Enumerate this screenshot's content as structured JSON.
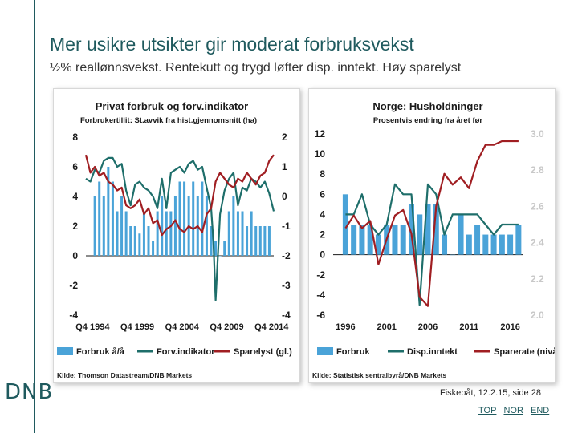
{
  "slide": {
    "title": "Mer usikre utsikter gir moderat forbruksvekst",
    "subtitle": "½% reallønnsvekst. Rentekutt og trygd løfter disp. inntekt. Høy sparelyst",
    "logo": "DNB",
    "footer": "Fiskebåt, 12.2.15, side 28",
    "nav": [
      "TOP",
      "NOR",
      "END"
    ]
  },
  "colors": {
    "accent": "#1f5a5e",
    "bars": "#4aa3d8",
    "teal_line": "#1e6e6a",
    "red_line": "#a01e22",
    "text": "#222222"
  },
  "chart_data": [
    {
      "type": "bar",
      "title": "Privat forbruk og forv.indikator",
      "subtitle": "Forbrukertillit: St.avvik fra hist.gjennomsnitt (ha)",
      "source": "Kilde: Thomson Datastream/DNB Markets",
      "xtick_labels": [
        "Q4 1994",
        "Q4 1999",
        "Q4 2004",
        "Q4 2009",
        "Q4 2014"
      ],
      "y_left": {
        "lim": [
          -4,
          8
        ],
        "ticks": [
          "8",
          "6",
          "4",
          "2",
          "0",
          "-2",
          "-4"
        ]
      },
      "y_right": {
        "lim": [
          -4,
          2
        ],
        "ticks": [
          "2",
          "1",
          "0",
          "-1",
          "-2",
          "-3",
          "-4"
        ]
      },
      "grid": false,
      "legend_position": "bottom",
      "series": [
        {
          "name": "Forbruk å/å",
          "kind": "bar",
          "axis": "left",
          "x": [
            1995,
            1995.5,
            1996,
            1996.5,
            1997,
            1997.5,
            1998,
            1998.5,
            1999,
            1999.5,
            2000,
            2000.5,
            2001,
            2001.5,
            2002,
            2002.5,
            2003,
            2003.5,
            2004,
            2004.5,
            2005,
            2005.5,
            2006,
            2006.5,
            2007,
            2007.5,
            2008,
            2008.5,
            2009,
            2009.5,
            2010,
            2010.5,
            2011,
            2011.5,
            2012,
            2012.5,
            2013,
            2013.5,
            2014,
            2014.5
          ],
          "values": [
            4,
            5,
            4,
            6,
            5,
            3,
            4,
            3,
            2,
            2,
            1.5,
            3,
            2,
            1,
            3,
            4,
            3,
            3,
            4,
            5,
            5,
            4,
            5,
            4,
            5,
            4,
            2,
            1,
            0,
            1,
            3,
            4,
            3,
            3,
            2,
            3,
            2,
            2,
            2,
            2
          ]
        },
        {
          "name": "Forv.indikator",
          "kind": "line",
          "axis": "right",
          "x": [
            1994,
            1994.5,
            1995,
            1995.5,
            1996,
            1996.5,
            1997,
            1997.5,
            1998,
            1998.5,
            1999,
            1999.5,
            2000,
            2000.5,
            2001,
            2001.5,
            2002,
            2002.5,
            2003,
            2003.5,
            2004,
            2004.5,
            2005,
            2005.5,
            2006,
            2006.5,
            2007,
            2007.5,
            2008,
            2008.25,
            2008.5,
            2008.75,
            2009,
            2009.5,
            2010,
            2010.5,
            2011,
            2011.5,
            2012,
            2012.5,
            2013,
            2013.5,
            2014,
            2014.5,
            2015
          ],
          "values": [
            0.6,
            0.5,
            0.9,
            0.8,
            1.2,
            1.3,
            1.3,
            1.0,
            1.1,
            0.2,
            -0.3,
            0.4,
            0.5,
            0.3,
            0.2,
            0.0,
            -0.4,
            0.6,
            -0.4,
            0.8,
            0.9,
            1.0,
            0.8,
            1.1,
            1.2,
            0.9,
            1.0,
            0.3,
            -0.4,
            -1.5,
            -3.5,
            -2.0,
            -0.6,
            0.2,
            0.6,
            0.8,
            -0.3,
            0.3,
            0.2,
            0.6,
            0.5,
            0.3,
            0.5,
            0.1,
            -0.5
          ]
        },
        {
          "name": "Sparelyst (gl.)",
          "kind": "line",
          "axis": "right",
          "x": [
            1994,
            1994.5,
            1995,
            1995.5,
            1996,
            1996.5,
            1997,
            1997.5,
            1998,
            1998.5,
            1999,
            1999.5,
            2000,
            2000.5,
            2001,
            2001.5,
            2002,
            2002.5,
            2003,
            2003.5,
            2004,
            2004.5,
            2005,
            2005.5,
            2006,
            2006.5,
            2007,
            2007.5,
            2008,
            2008.5,
            2009,
            2009.5,
            2010,
            2010.5,
            2011,
            2011.5,
            2012,
            2012.5,
            2013,
            2013.5,
            2014,
            2014.5,
            2015
          ],
          "values": [
            1.4,
            0.8,
            1.0,
            0.7,
            0.8,
            0.5,
            0.4,
            0.2,
            0.3,
            -0.3,
            -0.4,
            -0.3,
            -0.1,
            -0.6,
            -0.4,
            -0.9,
            -0.8,
            -1.3,
            -1.1,
            -1.0,
            -0.8,
            -1.1,
            -1.2,
            -1.0,
            -1.1,
            -1.0,
            -1.2,
            -0.6,
            -0.4,
            0.5,
            0.8,
            0.6,
            0.4,
            0.3,
            0.6,
            0.5,
            0.8,
            0.6,
            0.4,
            0.7,
            0.8,
            1.2,
            1.4
          ]
        }
      ]
    },
    {
      "type": "bar",
      "title": "Norge: Husholdninger",
      "subtitle": "Prosentvis endring fra året før",
      "source": "Kilde: Statistisk sentralbyrå/DNB Markets",
      "xtick_labels": [
        "1996",
        "2001",
        "2006",
        "2011",
        "2016"
      ],
      "y_left": {
        "lim": [
          -6,
          12
        ],
        "ticks": [
          "12",
          "10",
          "8",
          "6",
          "4",
          "2",
          "0",
          "-2",
          "-4",
          "-6"
        ]
      },
      "y_right": {
        "lim": [
          2.0,
          3.0
        ],
        "ticks": [
          "3.0",
          "2.8",
          "2.6",
          "2.4",
          "2.2",
          "2.0"
        ]
      },
      "grid": false,
      "legend_position": "bottom",
      "series": [
        {
          "name": "Forbruk",
          "kind": "bar",
          "axis": "left",
          "x": [
            1996,
            1997,
            1998,
            1999,
            2000,
            2001,
            2002,
            2003,
            2004,
            2005,
            2006,
            2007,
            2008,
            2009,
            2010,
            2011,
            2012,
            2013,
            2014,
            2015,
            2016,
            2017
          ],
          "values": [
            6,
            3,
            3,
            3,
            2,
            3,
            3,
            3,
            5,
            4,
            5,
            5,
            2,
            0,
            4,
            2,
            3,
            2,
            2,
            2,
            2,
            3
          ]
        },
        {
          "name": "Disp.inntekt",
          "kind": "line",
          "axis": "left",
          "x": [
            1996,
            1997,
            1998,
            1999,
            2000,
            2001,
            2002,
            2003,
            2004,
            2005,
            2006,
            2007,
            2008,
            2009,
            2010,
            2011,
            2012,
            2013,
            2014,
            2015,
            2016,
            2017
          ],
          "values": [
            4,
            4,
            6,
            3,
            2,
            3,
            7,
            6,
            6,
            -5,
            7,
            6,
            2,
            4,
            4,
            4,
            4,
            3,
            2,
            3,
            3,
            3
          ]
        },
        {
          "name": "Sparerate (nivå)",
          "kind": "line",
          "axis": "right",
          "x": [
            1996,
            1997,
            1998,
            1999,
            2000,
            2001,
            2002,
            2003,
            2004,
            2005,
            2006,
            2007,
            2008,
            2009,
            2010,
            2011,
            2012,
            2013,
            2014,
            2015,
            2016,
            2017
          ],
          "values": [
            2.48,
            2.55,
            2.48,
            2.52,
            2.28,
            2.42,
            2.55,
            2.58,
            2.45,
            2.1,
            2.05,
            2.6,
            2.78,
            2.72,
            2.76,
            2.7,
            2.85,
            2.94,
            2.94,
            2.96,
            2.96,
            2.96
          ]
        }
      ]
    }
  ]
}
